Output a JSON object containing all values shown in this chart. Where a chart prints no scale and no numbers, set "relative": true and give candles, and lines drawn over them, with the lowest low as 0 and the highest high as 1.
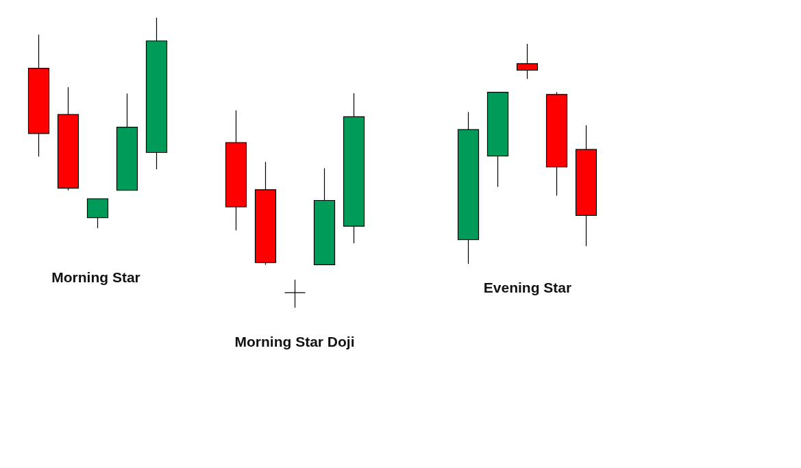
{
  "chart_data": [
    {
      "type": "candlestick",
      "title": "Morning Star",
      "relative": true,
      "categories": [
        null,
        null,
        null,
        null,
        null
      ],
      "ohlc": [
        [
          0.76,
          0.92,
          0.34,
          0.45
        ],
        [
          0.54,
          0.67,
          0.18,
          0.19
        ],
        [
          0.05,
          0.14,
          0,
          0.14
        ],
        [
          0.18,
          0.64,
          0.18,
          0.48
        ],
        [
          0.36,
          1,
          0.28,
          0.89
        ]
      ],
      "colors": [
        "#ff0000",
        "#ff0000",
        "#009b58",
        "#009b58",
        "#009b58"
      ]
    },
    {
      "type": "candlestick",
      "title": "Morning Star Doji",
      "relative": true,
      "categories": [
        null,
        null,
        null,
        null,
        null
      ],
      "ohlc": [
        [
          0.77,
          0.92,
          0.36,
          0.47
        ],
        [
          0.55,
          0.68,
          0.2,
          0.21
        ],
        [
          0.07,
          0.13,
          0,
          0.07
        ],
        [
          0.2,
          0.65,
          0.2,
          0.5
        ],
        [
          0.38,
          1,
          0.3,
          0.89
        ]
      ],
      "colors": [
        "#ff0000",
        "#ff0000",
        "#000000",
        "#009b58",
        "#009b58"
      ]
    },
    {
      "type": "candlestick",
      "title": "Evening Star",
      "relative": true,
      "categories": [
        null,
        null,
        null,
        null,
        null
      ],
      "ohlc": [
        [
          0.11,
          0.69,
          0,
          0.61
        ],
        [
          0.49,
          0.78,
          0.35,
          0.78
        ],
        [
          0.91,
          1,
          0.84,
          0.88
        ],
        [
          0.77,
          0.78,
          0.31,
          0.44
        ],
        [
          0.52,
          0.63,
          0.08,
          0.22
        ]
      ],
      "colors": [
        "#009b58",
        "#009b58",
        "#ff0000",
        "#ff0000",
        "#ff0000"
      ]
    }
  ]
}
